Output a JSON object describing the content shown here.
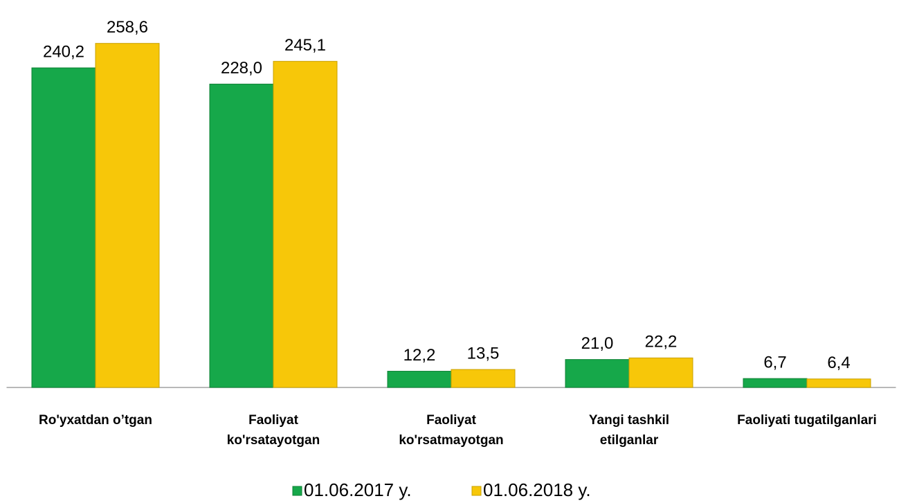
{
  "chart_data": {
    "type": "bar",
    "categories": [
      "Ro'yxatdan o’tgan",
      "Faoliyat\nko'rsatayotgan",
      "Faoliyat\nko'rsatmayotgan",
      "Yangi tashkil\netilganlar",
      "Faoliyati tugatilganlari"
    ],
    "series": [
      {
        "name": "01.06.2017 y.",
        "color": "#16a84a",
        "values": [
          240.2,
          228.0,
          12.2,
          21.0,
          6.7
        ],
        "value_labels": [
          "240,2",
          "228,0",
          "12,2",
          "21,0",
          "6,7"
        ]
      },
      {
        "name": "01.06.2018 y.",
        "color": "#f7c709",
        "values": [
          258.6,
          245.1,
          13.5,
          22.2,
          6.4
        ],
        "value_labels": [
          "258,6",
          "245,1",
          "13,5",
          "22,2",
          "6,4"
        ]
      }
    ],
    "ylim": [
      0,
      260
    ],
    "legend": "bottom"
  }
}
